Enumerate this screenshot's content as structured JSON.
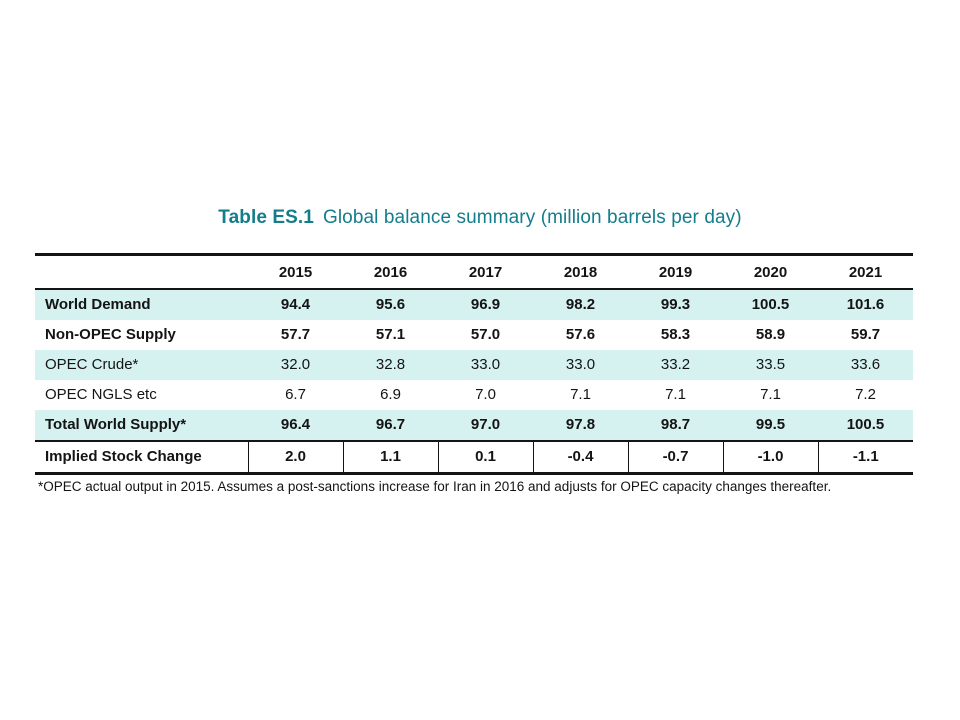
{
  "title": {
    "label": "Table ES.1",
    "text": "Global balance summary (million barrels per day)"
  },
  "colors": {
    "title_teal": "#147d8c",
    "row_highlight": "#d5f2f1",
    "border": "#141414"
  },
  "table": {
    "years": [
      "2015",
      "2016",
      "2017",
      "2018",
      "2019",
      "2020",
      "2021"
    ],
    "rows": [
      {
        "label": "World Demand",
        "bold": true,
        "shaded": true,
        "values": [
          "94.4",
          "95.6",
          "96.9",
          "98.2",
          "99.3",
          "100.5",
          "101.6"
        ]
      },
      {
        "label": "Non-OPEC Supply",
        "bold": true,
        "shaded": false,
        "values": [
          "57.7",
          "57.1",
          "57.0",
          "57.6",
          "58.3",
          "58.9",
          "59.7"
        ]
      },
      {
        "label": "OPEC Crude*",
        "bold": false,
        "shaded": true,
        "values": [
          "32.0",
          "32.8",
          "33.0",
          "33.0",
          "33.2",
          "33.5",
          "33.6"
        ]
      },
      {
        "label": "OPEC NGLS etc",
        "bold": false,
        "shaded": false,
        "values": [
          "6.7",
          "6.9",
          "7.0",
          "7.1",
          "7.1",
          "7.1",
          "7.2"
        ]
      },
      {
        "label": "Total World Supply*",
        "bold": true,
        "shaded": true,
        "values": [
          "96.4",
          "96.7",
          "97.0",
          "97.8",
          "98.7",
          "99.5",
          "100.5"
        ]
      },
      {
        "label": "Implied Stock Change",
        "bold": true,
        "shaded": false,
        "values": [
          "2.0",
          "1.1",
          "0.1",
          "-0.4",
          "-0.7",
          "-1.0",
          "-1.1"
        ]
      }
    ]
  },
  "footnote": "*OPEC actual output in 2015. Assumes a post-sanctions increase for Iran in 2016 and adjusts for OPEC capacity changes thereafter."
}
